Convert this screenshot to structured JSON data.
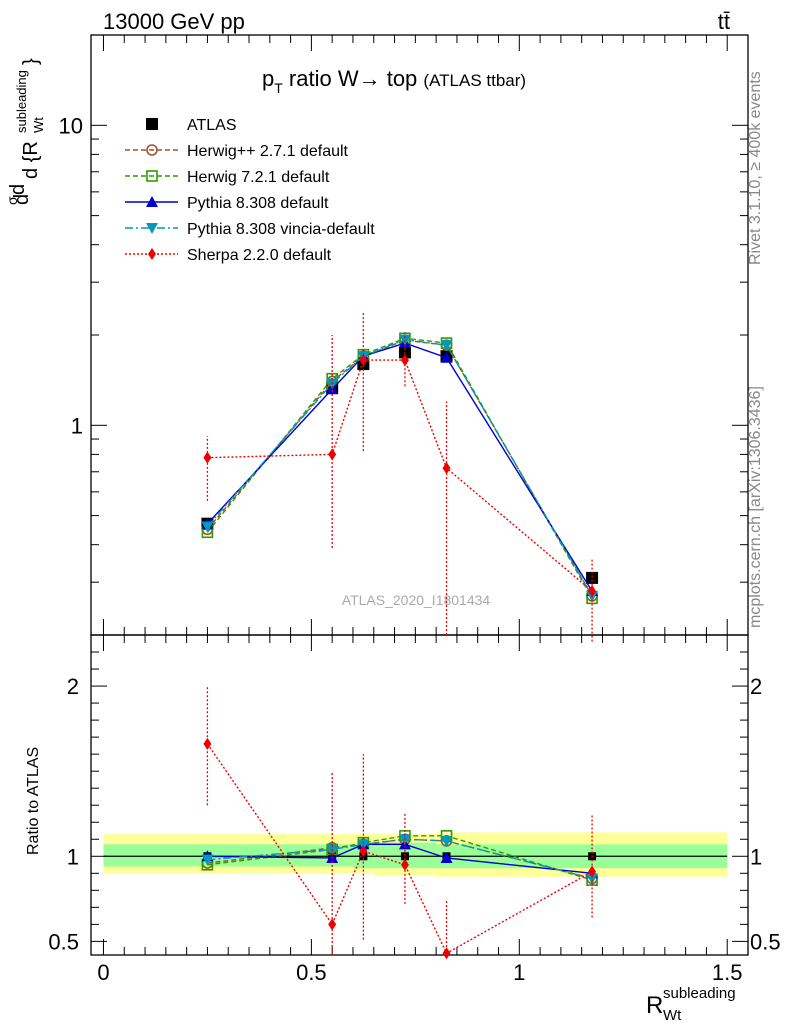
{
  "header": {
    "energy": "13000 GeV pp",
    "process": "tt̄"
  },
  "title": {
    "main": "p",
    "sub": "T",
    "rest": " ratio W→ top",
    "small": "(ATLAS ttbar)"
  },
  "watermark": "ATLAS_2020_I1801434",
  "side": {
    "rivet": "Rivet 3.1.10, ≥ 400k events",
    "mcplots": "mcplots.cern.ch [arXiv:1306.3436]"
  },
  "labels": {
    "ratio_ylabel": "Ratio to ATLAS",
    "xlabel_main": "R",
    "xlabel_sup": "subleading",
    "xlabel_sub": "Wt"
  },
  "chart_data": {
    "type": "line",
    "x": [
      0.25,
      0.55,
      0.625,
      0.725,
      0.825,
      1.175
    ],
    "xlim": [
      -0.03,
      1.55
    ],
    "xticks": [
      "0",
      "0.5",
      "1",
      "1.5"
    ],
    "main": {
      "yscale": "log",
      "ylim": [
        0.2,
        20
      ],
      "yticks": [
        "1",
        "10"
      ],
      "series": [
        {
          "name": "ATLAS",
          "color": "#000000",
          "marker": "square-filled",
          "values": [
            0.47,
            1.33,
            1.6,
            1.75,
            1.7,
            0.31
          ]
        },
        {
          "name": "Herwig++ 2.7.1 default",
          "color": "#a0522d",
          "marker": "circle-open",
          "dash": "5,3",
          "values": [
            0.45,
            1.4,
            1.7,
            1.92,
            1.85,
            0.27
          ]
        },
        {
          "name": "Herwig 7.2.1 default",
          "color": "#339900",
          "marker": "square-open",
          "dash": "5,3",
          "values": [
            0.44,
            1.43,
            1.72,
            1.95,
            1.88,
            0.265
          ]
        },
        {
          "name": "Pythia 8.308 default",
          "color": "#0000cc",
          "marker": "triangle-up",
          "values": [
            0.47,
            1.32,
            1.7,
            1.88,
            1.68,
            0.28
          ]
        },
        {
          "name": "Pythia 8.308 vincia-default",
          "color": "#0099bb",
          "marker": "triangle-down",
          "dash": "8,3,2,3",
          "values": [
            0.46,
            1.38,
            1.7,
            1.93,
            1.85,
            0.27
          ]
        },
        {
          "name": "Sherpa 2.2.0 default",
          "color": "#ee0000",
          "marker": "diamond",
          "dash": "2,2",
          "values": [
            0.78,
            0.8,
            1.65,
            1.65,
            0.72,
            0.28
          ],
          "err_low": [
            0.56,
            0.39,
            0.82,
            1.35,
            0.2,
            0.19
          ],
          "err_high": [
            0.92,
            2.0,
            2.4,
            2.05,
            1.2,
            0.36
          ]
        }
      ]
    },
    "ratio": {
      "ylim": [
        0.42,
        2.3
      ],
      "yticks": [
        "0.5",
        "1",
        "2"
      ],
      "band_inner": [
        {
          "x0": 0.0,
          "x1": 0.6,
          "lo": 0.94,
          "hi": 1.07
        },
        {
          "x0": 0.6,
          "x1": 0.65,
          "lo": 0.93,
          "hi": 1.07
        },
        {
          "x0": 0.65,
          "x1": 0.8,
          "lo": 0.93,
          "hi": 1.08
        },
        {
          "x0": 0.8,
          "x1": 1.5,
          "lo": 0.93,
          "hi": 1.07
        }
      ],
      "band_outer": [
        {
          "x0": 0.0,
          "x1": 0.6,
          "lo": 0.9,
          "hi": 1.13
        },
        {
          "x0": 0.6,
          "x1": 0.65,
          "lo": 0.9,
          "hi": 1.13
        },
        {
          "x0": 0.65,
          "x1": 0.8,
          "lo": 0.89,
          "hi": 1.13
        },
        {
          "x0": 0.8,
          "x1": 1.5,
          "lo": 0.88,
          "hi": 1.14
        }
      ],
      "series": [
        {
          "name": "Herwig++ 2.7.1 default",
          "color": "#a0522d",
          "marker": "circle-open",
          "dash": "5,3",
          "values": [
            0.96,
            1.05,
            1.07,
            1.1,
            1.09,
            0.87
          ]
        },
        {
          "name": "Herwig 7.2.1 default",
          "color": "#339900",
          "marker": "square-open",
          "dash": "5,3",
          "values": [
            0.95,
            1.04,
            1.08,
            1.12,
            1.12,
            0.86
          ]
        },
        {
          "name": "Pythia 8.308 default",
          "color": "#0000cc",
          "marker": "triangle-up",
          "values": [
            1.0,
            0.99,
            1.07,
            1.07,
            0.99,
            0.9
          ]
        },
        {
          "name": "Pythia 8.308 vincia-default",
          "color": "#0099bb",
          "marker": "triangle-down",
          "dash": "8,3,2,3",
          "values": [
            0.98,
            1.04,
            1.07,
            1.1,
            1.09,
            0.87
          ]
        },
        {
          "name": "Sherpa 2.2.0 default",
          "color": "#ee0000",
          "marker": "diamond",
          "dash": "2,2",
          "values": [
            1.66,
            0.6,
            1.03,
            0.95,
            0.43,
            0.91
          ],
          "err_low": [
            1.3,
            0.3,
            0.51,
            0.72,
            0.2,
            0.64
          ],
          "err_high": [
            2.0,
            1.5,
            1.6,
            1.25,
            0.74,
            1.25
          ]
        }
      ]
    }
  }
}
